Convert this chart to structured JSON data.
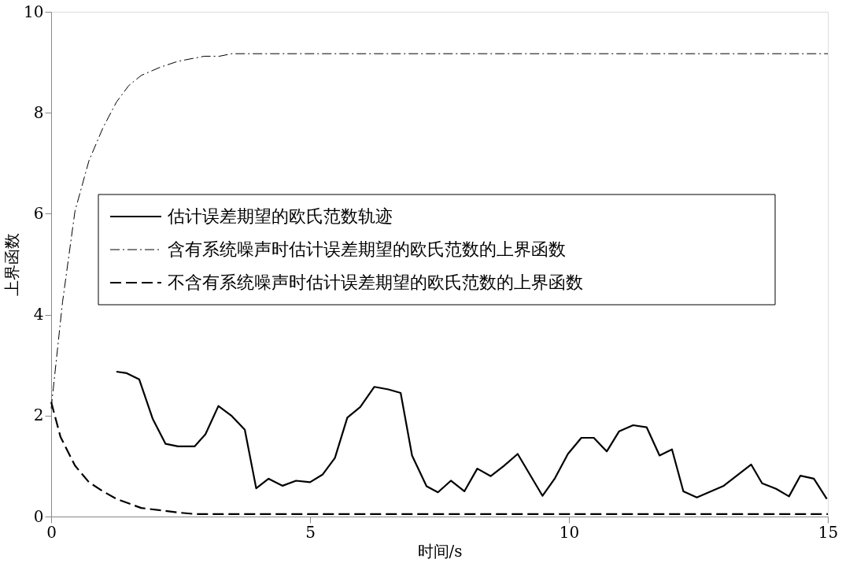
{
  "chart_data": {
    "type": "line",
    "xlabel": "时间/s",
    "ylabel": "上界函数",
    "xlim": [
      0,
      15
    ],
    "ylim": [
      0,
      10
    ],
    "xticks": [
      0,
      5,
      10,
      15
    ],
    "yticks": [
      0,
      2,
      4,
      6,
      8,
      10
    ],
    "grid": false,
    "legend": "left",
    "marker": "none",
    "series": [
      {
        "name": "估计误差期望的欧氏范数轨迹",
        "color": "#000000",
        "line_style": "solid",
        "x": [
          1.26,
          1.46,
          1.7,
          1.96,
          2.21,
          2.45,
          2.77,
          2.98,
          3.23,
          3.49,
          3.74,
          3.96,
          4.2,
          4.47,
          4.73,
          5.0,
          5.24,
          5.48,
          5.72,
          5.97,
          6.24,
          6.51,
          6.75,
          6.97,
          7.25,
          7.47,
          7.72,
          7.98,
          8.23,
          8.49,
          8.74,
          9.01,
          9.49,
          9.73,
          9.98,
          10.24,
          10.48,
          10.73,
          10.97,
          11.24,
          11.5,
          11.75,
          11.99,
          12.21,
          12.47,
          12.99,
          13.52,
          13.73,
          14.0,
          14.25,
          14.47,
          14.73,
          14.98
        ],
        "values": [
          2.87,
          2.84,
          2.72,
          1.94,
          1.44,
          1.39,
          1.39,
          1.63,
          2.19,
          1.99,
          1.72,
          0.56,
          0.75,
          0.61,
          0.71,
          0.68,
          0.83,
          1.16,
          1.96,
          2.17,
          2.57,
          2.52,
          2.45,
          1.21,
          0.6,
          0.48,
          0.71,
          0.5,
          0.95,
          0.8,
          1.0,
          1.24,
          0.41,
          0.76,
          1.24,
          1.56,
          1.56,
          1.29,
          1.69,
          1.81,
          1.77,
          1.21,
          1.33,
          0.5,
          0.38,
          0.61,
          1.03,
          0.66,
          0.55,
          0.4,
          0.81,
          0.75,
          0.35
        ]
      },
      {
        "name": "含有系统噪声时估计误差期望的欧氏范数的上界函数",
        "color": "#000000",
        "line_style": "dashdot",
        "x": [
          0,
          0.22,
          0.46,
          0.73,
          1.0,
          1.26,
          1.5,
          1.74,
          2.1,
          2.45,
          2.96,
          3.25,
          3.49,
          15
        ],
        "values": [
          2.14,
          4.25,
          6.05,
          7.05,
          7.7,
          8.21,
          8.54,
          8.74,
          8.9,
          9.02,
          9.12,
          9.12,
          9.17,
          9.17
        ]
      },
      {
        "name": "不含有系统噪声时估计误差期望的欧氏范数的上界函数",
        "color": "#000000",
        "line_style": "dashed",
        "x": [
          0,
          0.18,
          0.46,
          0.73,
          1.0,
          1.26,
          1.74,
          2.45,
          2.77,
          15
        ],
        "values": [
          2.27,
          1.58,
          1.01,
          0.68,
          0.5,
          0.35,
          0.17,
          0.08,
          0.05,
          0.05
        ]
      }
    ]
  }
}
